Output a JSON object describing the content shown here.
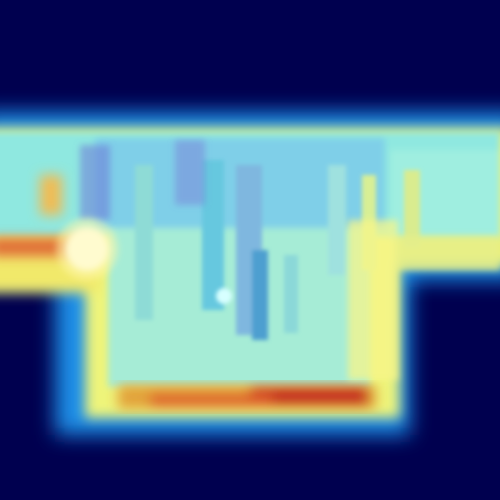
{
  "image": {
    "kind": "attention-heatmap",
    "colormap": "jet",
    "background_color": "#00004f"
  }
}
